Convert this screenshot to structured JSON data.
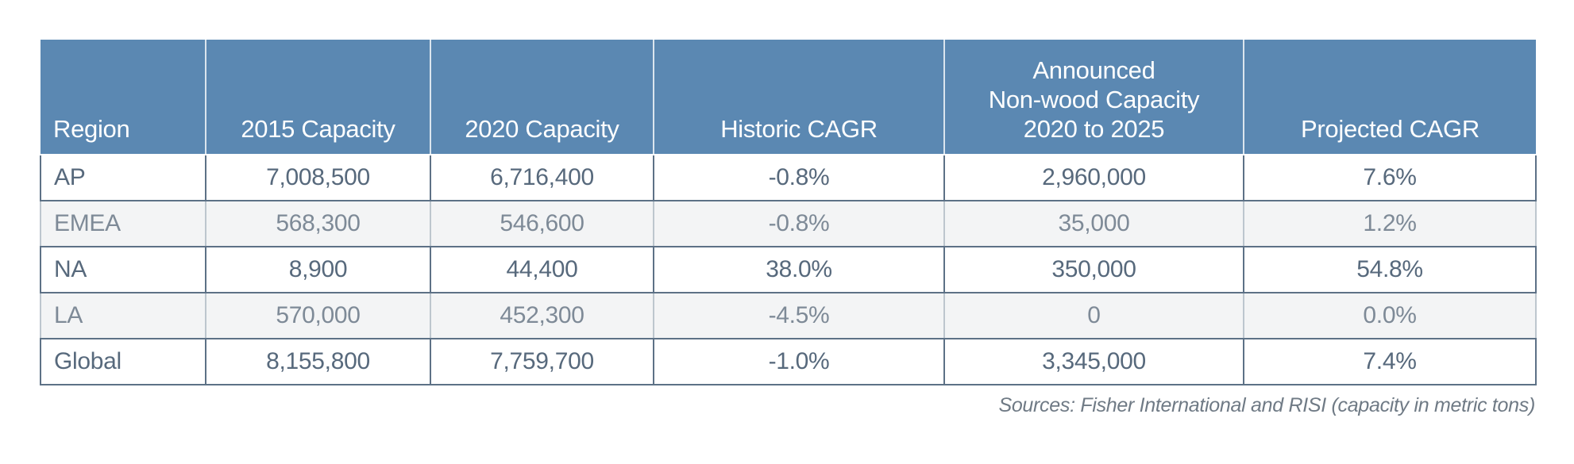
{
  "chart_data": {
    "type": "table",
    "columns": [
      "Region",
      "2015 Capacity",
      "2020 Capacity",
      "Historic CAGR",
      "Announced\nNon-wood Capacity\n2020 to 2025",
      "Projected CAGR"
    ],
    "rows": [
      [
        "AP",
        "7,008,500",
        "6,716,400",
        "-0.8%",
        "2,960,000",
        "7.6%"
      ],
      [
        "EMEA",
        "568,300",
        "546,600",
        "-0.8%",
        "35,000",
        "1.2%"
      ],
      [
        "NA",
        "8,900",
        "44,400",
        "38.0%",
        "350,000",
        "54.8%"
      ],
      [
        "LA",
        "570,000",
        "452,300",
        "-4.5%",
        "0",
        "0.0%"
      ],
      [
        "Global",
        "8,155,800",
        "7,759,700",
        "-1.0%",
        "3,345,000",
        "7.4%"
      ]
    ],
    "legend_position": "none",
    "grid": "table-borders"
  },
  "source_note": "Sources: Fisher International and RISI (capacity in metric tons)",
  "colors": {
    "header_bg": "#5b88b2",
    "header_text": "#ffffff",
    "border_dark": "#5d7186",
    "border_light": "#bdc6ce",
    "row_light_bg": "#ffffff",
    "row_shaded_bg": "#f3f4f5",
    "text_dark": "#57697c",
    "text_muted": "#7e8a97",
    "source_text": "#6f7a85"
  }
}
